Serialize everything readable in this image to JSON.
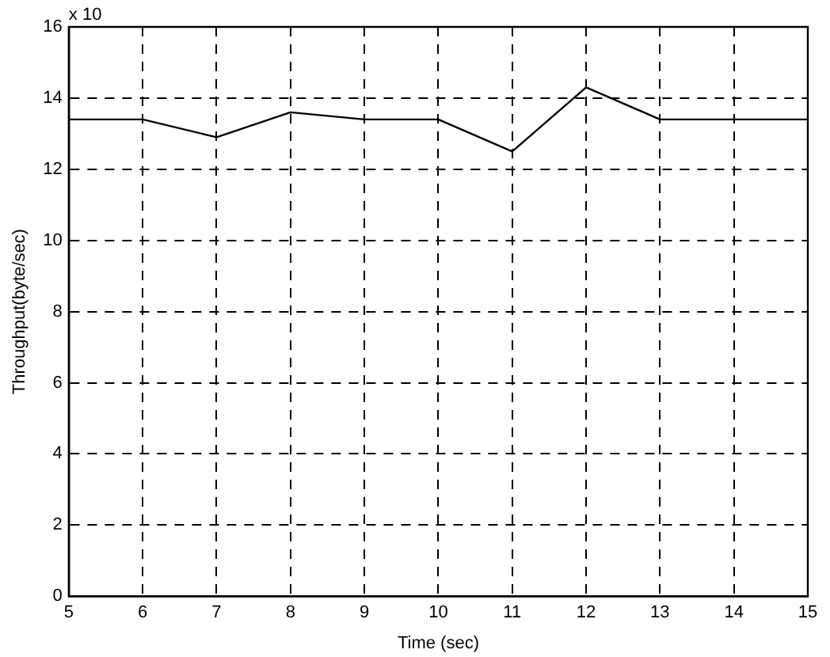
{
  "chart_data": {
    "type": "line",
    "xlabel": "Time (sec)",
    "ylabel": "Throughput(byte/sec)",
    "annotations": [
      "x 10"
    ],
    "x": [
      5,
      6,
      7,
      8,
      9,
      10,
      11,
      12,
      13,
      14,
      15
    ],
    "series": [
      {
        "color": "#000000",
        "values": [
          13.4,
          13.4,
          12.9,
          13.6,
          13.4,
          13.4,
          12.5,
          14.3,
          13.4,
          13.4,
          13.4
        ]
      }
    ],
    "xlim": [
      5,
      15
    ],
    "xticks": [
      5,
      6,
      7,
      8,
      9,
      10,
      11,
      12,
      13,
      14,
      15
    ],
    "ylim": [
      0,
      16
    ],
    "yticks": [
      0,
      2,
      4,
      6,
      8,
      10,
      12,
      14,
      16
    ],
    "grid": true,
    "marker": "none",
    "line_style": "solid"
  }
}
